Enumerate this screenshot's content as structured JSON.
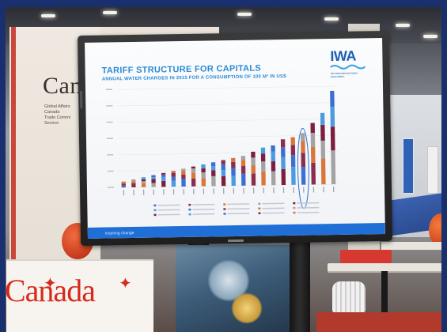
{
  "scene": {
    "booth_word": "Can",
    "booth_sub_lines": [
      "Global Affairs",
      "Canada",
      "Trade Commi",
      "Service"
    ],
    "counter_word": "Canada"
  },
  "slide": {
    "title": "TARIFF STRUCTURE FOR CAPITALS",
    "subtitle": "ANNUAL WATER CHARGES IN 2015 FOR A CONSUMPTION OF 100 M³ IN US$",
    "logo_text": "IWA",
    "logo_caption": "the international water association",
    "footer_text": "Inspiring change"
  },
  "colors": {
    "accent_blue": "#2b8bd6",
    "canada_red": "#d52b1e"
  },
  "chart_data": {
    "type": "bar",
    "stacked": true,
    "highlighted_bar_index": 18,
    "series_colors": [
      "#3d6fd1",
      "#8b2d4c",
      "#d9773a",
      "#a3a3a3",
      "#7c1f3f",
      "#4b9be0"
    ],
    "values": [
      [
        1,
        1,
        1,
        0
      ],
      [
        2,
        1,
        1,
        0
      ],
      [
        2,
        1,
        1,
        1
      ],
      [
        2,
        2,
        1,
        1
      ],
      [
        3,
        2,
        1,
        1
      ],
      [
        3,
        2,
        2,
        1
      ],
      [
        4,
        2,
        2,
        1
      ],
      [
        4,
        3,
        2,
        1
      ],
      [
        4,
        3,
        2,
        2
      ],
      [
        5,
        3,
        2,
        2
      ],
      [
        5,
        3,
        3,
        2
      ],
      [
        5,
        4,
        3,
        2
      ],
      [
        6,
        4,
        3,
        2
      ],
      [
        6,
        4,
        4,
        3
      ],
      [
        7,
        5,
        4,
        3
      ],
      [
        7,
        5,
        5,
        3
      ],
      [
        8,
        6,
        5,
        4
      ],
      [
        9,
        6,
        5,
        4
      ],
      [
        9,
        7,
        6,
        4
      ],
      [
        11,
        8,
        7,
        5
      ],
      [
        13,
        9,
        8,
        6
      ],
      [
        17,
        12,
        10,
        8
      ]
    ]
  }
}
